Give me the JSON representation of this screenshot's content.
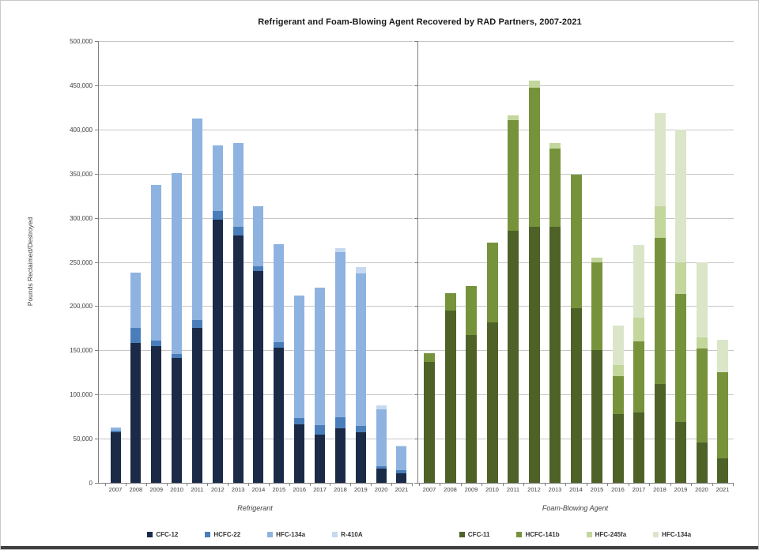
{
  "title": "Refrigerant and Foam-Blowing Agent Recovered by RAD Partners, 2007-2021",
  "y_axis": {
    "label": "Pounds Reclaimed/Destroyed",
    "ticks": [
      "0",
      "50,000",
      "100,000",
      "150,000",
      "200,000",
      "250,000",
      "300,000",
      "350,000",
      "400,000",
      "450,000",
      "500,000"
    ],
    "min": 0,
    "max": 500000,
    "step": 50000
  },
  "chart_data": [
    {
      "type": "bar",
      "stacked": true,
      "panel": "left",
      "title": "Refrigerant",
      "ylabel": "Pounds Reclaimed/Destroyed",
      "ylim": [
        0,
        500000
      ],
      "grid": true,
      "categories": [
        "2007",
        "2008",
        "2009",
        "2010",
        "2011",
        "2012",
        "2013",
        "2014",
        "2015",
        "2016",
        "2017",
        "2018",
        "2019",
        "2020",
        "2021"
      ],
      "series": [
        {
          "name": "CFC-12",
          "color": "#1b2a47",
          "values": [
            57000,
            158000,
            155000,
            141000,
            175000,
            298000,
            280000,
            240000,
            153000,
            66000,
            55000,
            62000,
            57000,
            16000,
            11000
          ]
        },
        {
          "name": "HCFC-22",
          "color": "#4a7ebb",
          "values": [
            2000,
            17000,
            6000,
            5000,
            9000,
            10000,
            10000,
            5000,
            6000,
            7000,
            10000,
            12000,
            7000,
            3000,
            3000
          ]
        },
        {
          "name": "HFC-134a",
          "color": "#8eb3e0",
          "values": [
            4000,
            63000,
            176000,
            205000,
            228000,
            74000,
            95000,
            68000,
            111000,
            139000,
            156000,
            187000,
            173000,
            64000,
            27000
          ]
        },
        {
          "name": "R-410A",
          "color": "#c7d9f0",
          "values": [
            0,
            0,
            0,
            0,
            0,
            0,
            0,
            0,
            0,
            0,
            0,
            5000,
            7000,
            5000,
            1000
          ]
        }
      ],
      "totals": [
        63000,
        238000,
        337000,
        351000,
        412000,
        382000,
        385000,
        313000,
        270000,
        212000,
        221000,
        266000,
        244000,
        88000,
        42000
      ]
    },
    {
      "type": "bar",
      "stacked": true,
      "panel": "right",
      "title": "Foam-Blowing Agent",
      "ylabel": "Pounds Reclaimed/Destroyed",
      "ylim": [
        0,
        500000
      ],
      "grid": true,
      "categories": [
        "2007",
        "2008",
        "2009",
        "2010",
        "2011",
        "2012",
        "2013",
        "2014",
        "2015",
        "2016",
        "2017",
        "2018",
        "2019",
        "2020",
        "2021"
      ],
      "series": [
        {
          "name": "CFC-11",
          "color": "#4e6227",
          "values": [
            137000,
            195000,
            167000,
            182000,
            285000,
            290000,
            290000,
            198000,
            150000,
            78000,
            80000,
            112000,
            69000,
            46000,
            28000
          ]
        },
        {
          "name": "HCFC-141b",
          "color": "#76933c",
          "values": [
            10000,
            20000,
            56000,
            90000,
            126000,
            157000,
            88000,
            151000,
            100000,
            43000,
            80000,
            165000,
            145000,
            106000,
            97000
          ]
        },
        {
          "name": "HFC-245fa",
          "color": "#c3d69b",
          "values": [
            0,
            0,
            0,
            0,
            5000,
            8000,
            7000,
            0,
            5000,
            12000,
            27000,
            36000,
            36000,
            13000,
            0
          ]
        },
        {
          "name": "HFC-134a",
          "color": "#dbe6c9",
          "values": [
            0,
            0,
            0,
            0,
            0,
            0,
            0,
            0,
            0,
            45000,
            82000,
            106000,
            150000,
            85000,
            37000
          ]
        }
      ],
      "totals": [
        147000,
        215000,
        223000,
        272000,
        416000,
        455000,
        385000,
        349000,
        255000,
        178000,
        269000,
        419000,
        400000,
        250000,
        162000
      ]
    }
  ]
}
